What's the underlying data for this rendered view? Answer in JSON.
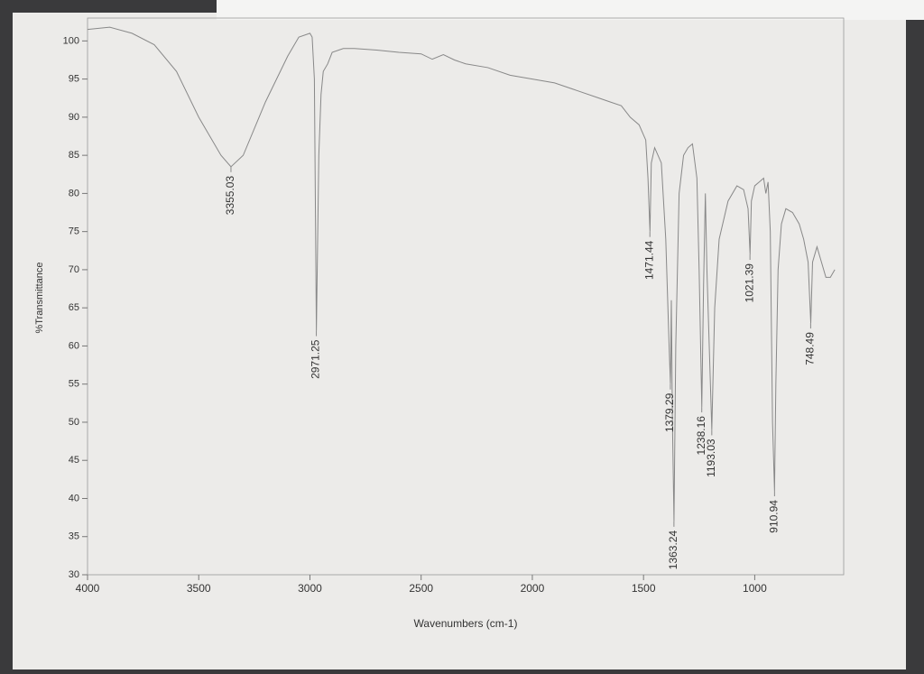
{
  "chart_data": {
    "type": "line",
    "y_label": "%Transmittance",
    "x_label": "Wavenumbers (cm-1)",
    "xlim": [
      4000,
      600
    ],
    "ylim": [
      30,
      103
    ],
    "xticks": [
      4000,
      3500,
      3000,
      2500,
      2000,
      1500,
      1000
    ],
    "yticks": [
      30,
      35,
      40,
      45,
      50,
      55,
      60,
      65,
      70,
      75,
      80,
      85,
      90,
      95,
      100
    ],
    "color": "#888888",
    "x": [
      4000,
      3900,
      3800,
      3700,
      3600,
      3500,
      3400,
      3355,
      3300,
      3200,
      3100,
      3050,
      3000,
      2990,
      2980,
      2971,
      2960,
      2950,
      2940,
      2920,
      2900,
      2850,
      2800,
      2700,
      2600,
      2500,
      2450,
      2400,
      2350,
      2300,
      2200,
      2100,
      2000,
      1900,
      1800,
      1700,
      1650,
      1600,
      1560,
      1520,
      1490,
      1480,
      1471,
      1465,
      1450,
      1420,
      1400,
      1385,
      1379,
      1375,
      1370,
      1363,
      1355,
      1340,
      1320,
      1300,
      1280,
      1260,
      1250,
      1238,
      1230,
      1222,
      1215,
      1193,
      1180,
      1160,
      1120,
      1080,
      1050,
      1030,
      1021,
      1015,
      1000,
      980,
      960,
      950,
      940,
      930,
      920,
      911,
      905,
      895,
      880,
      860,
      830,
      800,
      780,
      760,
      748,
      740,
      720,
      700,
      680,
      660,
      640
    ],
    "values": [
      101.5,
      101.8,
      101,
      99.5,
      96,
      90,
      85,
      83.5,
      85,
      92,
      98,
      100.5,
      101,
      100.5,
      95,
      62,
      85,
      93,
      96,
      97,
      98.5,
      99,
      99,
      98.8,
      98.5,
      98.3,
      97.6,
      98.2,
      97.5,
      97,
      96.5,
      95.5,
      95,
      94.5,
      93.5,
      92.5,
      92,
      91.5,
      90,
      89,
      87,
      82,
      75,
      84,
      86,
      84,
      74,
      60,
      55,
      66,
      50,
      37,
      60,
      80,
      85,
      86,
      86.5,
      82,
      70,
      52,
      68,
      80,
      70,
      49,
      65,
      74,
      79,
      81,
      80.5,
      78,
      72,
      79,
      81,
      81.5,
      82,
      80,
      81.5,
      75,
      50,
      41,
      55,
      70,
      76,
      78,
      77.5,
      76,
      74,
      71,
      63,
      71,
      73,
      71,
      69,
      69,
      70
    ],
    "peaks": {
      "x": [
        3355.03,
        2971.25,
        1471.44,
        1379.29,
        1363.24,
        1238.16,
        1193.03,
        1021.39,
        910.94,
        748.49
      ],
      "y": [
        83.5,
        62,
        75,
        55,
        37,
        52,
        49,
        72,
        41,
        63
      ]
    }
  }
}
